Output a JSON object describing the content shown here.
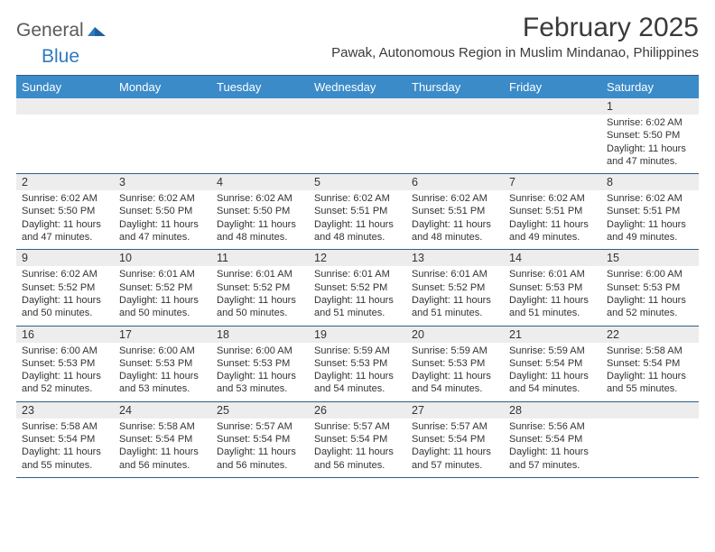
{
  "brand": {
    "part1": "General",
    "part2": "Blue"
  },
  "title": "February 2025",
  "location": "Pawak, Autonomous Region in Muslim Mindanao, Philippines",
  "colors": {
    "header_bg": "#3b8bc9",
    "header_text": "#ffffff",
    "daynum_bg": "#ededed",
    "border": "#2e5f8a",
    "text": "#333333",
    "brand_gray": "#5a5a5a",
    "brand_blue": "#2f7bbf",
    "page_bg": "#ffffff"
  },
  "typography": {
    "title_fontsize": 30,
    "location_fontsize": 15,
    "dayheader_fontsize": 13,
    "daynum_fontsize": 12.5,
    "cell_fontsize": 11
  },
  "layout": {
    "columns": 7,
    "weeks": 5
  },
  "day_names": [
    "Sunday",
    "Monday",
    "Tuesday",
    "Wednesday",
    "Thursday",
    "Friday",
    "Saturday"
  ],
  "weeks": [
    {
      "nums": [
        "",
        "",
        "",
        "",
        "",
        "",
        "1"
      ],
      "cells": [
        {},
        {},
        {},
        {},
        {},
        {},
        {
          "sunrise": "Sunrise: 6:02 AM",
          "sunset": "Sunset: 5:50 PM",
          "daylight": "Daylight: 11 hours and 47 minutes."
        }
      ]
    },
    {
      "nums": [
        "2",
        "3",
        "4",
        "5",
        "6",
        "7",
        "8"
      ],
      "cells": [
        {
          "sunrise": "Sunrise: 6:02 AM",
          "sunset": "Sunset: 5:50 PM",
          "daylight": "Daylight: 11 hours and 47 minutes."
        },
        {
          "sunrise": "Sunrise: 6:02 AM",
          "sunset": "Sunset: 5:50 PM",
          "daylight": "Daylight: 11 hours and 47 minutes."
        },
        {
          "sunrise": "Sunrise: 6:02 AM",
          "sunset": "Sunset: 5:50 PM",
          "daylight": "Daylight: 11 hours and 48 minutes."
        },
        {
          "sunrise": "Sunrise: 6:02 AM",
          "sunset": "Sunset: 5:51 PM",
          "daylight": "Daylight: 11 hours and 48 minutes."
        },
        {
          "sunrise": "Sunrise: 6:02 AM",
          "sunset": "Sunset: 5:51 PM",
          "daylight": "Daylight: 11 hours and 48 minutes."
        },
        {
          "sunrise": "Sunrise: 6:02 AM",
          "sunset": "Sunset: 5:51 PM",
          "daylight": "Daylight: 11 hours and 49 minutes."
        },
        {
          "sunrise": "Sunrise: 6:02 AM",
          "sunset": "Sunset: 5:51 PM",
          "daylight": "Daylight: 11 hours and 49 minutes."
        }
      ]
    },
    {
      "nums": [
        "9",
        "10",
        "11",
        "12",
        "13",
        "14",
        "15"
      ],
      "cells": [
        {
          "sunrise": "Sunrise: 6:02 AM",
          "sunset": "Sunset: 5:52 PM",
          "daylight": "Daylight: 11 hours and 50 minutes."
        },
        {
          "sunrise": "Sunrise: 6:01 AM",
          "sunset": "Sunset: 5:52 PM",
          "daylight": "Daylight: 11 hours and 50 minutes."
        },
        {
          "sunrise": "Sunrise: 6:01 AM",
          "sunset": "Sunset: 5:52 PM",
          "daylight": "Daylight: 11 hours and 50 minutes."
        },
        {
          "sunrise": "Sunrise: 6:01 AM",
          "sunset": "Sunset: 5:52 PM",
          "daylight": "Daylight: 11 hours and 51 minutes."
        },
        {
          "sunrise": "Sunrise: 6:01 AM",
          "sunset": "Sunset: 5:52 PM",
          "daylight": "Daylight: 11 hours and 51 minutes."
        },
        {
          "sunrise": "Sunrise: 6:01 AM",
          "sunset": "Sunset: 5:53 PM",
          "daylight": "Daylight: 11 hours and 51 minutes."
        },
        {
          "sunrise": "Sunrise: 6:00 AM",
          "sunset": "Sunset: 5:53 PM",
          "daylight": "Daylight: 11 hours and 52 minutes."
        }
      ]
    },
    {
      "nums": [
        "16",
        "17",
        "18",
        "19",
        "20",
        "21",
        "22"
      ],
      "cells": [
        {
          "sunrise": "Sunrise: 6:00 AM",
          "sunset": "Sunset: 5:53 PM",
          "daylight": "Daylight: 11 hours and 52 minutes."
        },
        {
          "sunrise": "Sunrise: 6:00 AM",
          "sunset": "Sunset: 5:53 PM",
          "daylight": "Daylight: 11 hours and 53 minutes."
        },
        {
          "sunrise": "Sunrise: 6:00 AM",
          "sunset": "Sunset: 5:53 PM",
          "daylight": "Daylight: 11 hours and 53 minutes."
        },
        {
          "sunrise": "Sunrise: 5:59 AM",
          "sunset": "Sunset: 5:53 PM",
          "daylight": "Daylight: 11 hours and 54 minutes."
        },
        {
          "sunrise": "Sunrise: 5:59 AM",
          "sunset": "Sunset: 5:53 PM",
          "daylight": "Daylight: 11 hours and 54 minutes."
        },
        {
          "sunrise": "Sunrise: 5:59 AM",
          "sunset": "Sunset: 5:54 PM",
          "daylight": "Daylight: 11 hours and 54 minutes."
        },
        {
          "sunrise": "Sunrise: 5:58 AM",
          "sunset": "Sunset: 5:54 PM",
          "daylight": "Daylight: 11 hours and 55 minutes."
        }
      ]
    },
    {
      "nums": [
        "23",
        "24",
        "25",
        "26",
        "27",
        "28",
        ""
      ],
      "cells": [
        {
          "sunrise": "Sunrise: 5:58 AM",
          "sunset": "Sunset: 5:54 PM",
          "daylight": "Daylight: 11 hours and 55 minutes."
        },
        {
          "sunrise": "Sunrise: 5:58 AM",
          "sunset": "Sunset: 5:54 PM",
          "daylight": "Daylight: 11 hours and 56 minutes."
        },
        {
          "sunrise": "Sunrise: 5:57 AM",
          "sunset": "Sunset: 5:54 PM",
          "daylight": "Daylight: 11 hours and 56 minutes."
        },
        {
          "sunrise": "Sunrise: 5:57 AM",
          "sunset": "Sunset: 5:54 PM",
          "daylight": "Daylight: 11 hours and 56 minutes."
        },
        {
          "sunrise": "Sunrise: 5:57 AM",
          "sunset": "Sunset: 5:54 PM",
          "daylight": "Daylight: 11 hours and 57 minutes."
        },
        {
          "sunrise": "Sunrise: 5:56 AM",
          "sunset": "Sunset: 5:54 PM",
          "daylight": "Daylight: 11 hours and 57 minutes."
        },
        {}
      ]
    }
  ]
}
